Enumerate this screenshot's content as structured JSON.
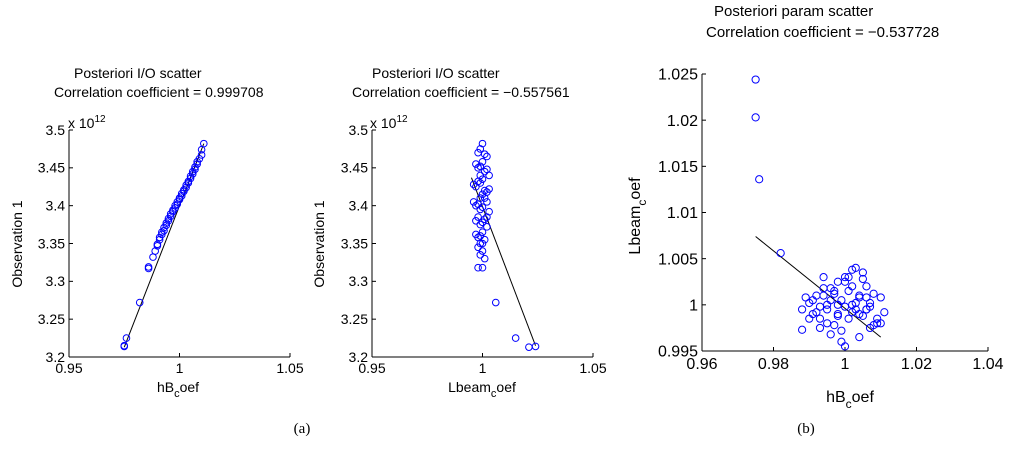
{
  "captions": {
    "a": "(a)",
    "b": "(b)"
  },
  "colors": {
    "marker": "#0000ff",
    "line": "#000000",
    "axis": "#000000"
  },
  "chart_data": [
    {
      "type": "scatter",
      "title": "Posteriori I/O scatter",
      "subtitle": "Correlation coefficient = 0.999708",
      "xlabel_main": "hB",
      "xlabel_sub": "c",
      "xlabel_rest": "oef",
      "ylabel": "Observation 1",
      "exponent_base": "x 10",
      "exponent_power": "12",
      "xlim": [
        0.95,
        1.05
      ],
      "ylim": [
        3.2,
        3.5
      ],
      "xticks": [
        0.95,
        1,
        1.05
      ],
      "xticklabels": [
        "0.95",
        "1",
        "1.05"
      ],
      "yticks": [
        3.2,
        3.25,
        3.3,
        3.35,
        3.4,
        3.45,
        3.5
      ],
      "yticklabels": [
        "3.2",
        "3.25",
        "3.3",
        "3.35",
        "3.4",
        "3.45",
        "3.5"
      ],
      "fit_line": {
        "x": [
          0.975,
          1.011
        ],
        "y": [
          3.213,
          3.482
        ]
      },
      "points": {
        "x": [
          0.975,
          0.975,
          0.976,
          0.982,
          0.986,
          0.986,
          0.988,
          0.989,
          0.99,
          0.99,
          0.991,
          0.991,
          0.992,
          0.992,
          0.993,
          0.993,
          0.994,
          0.994,
          0.995,
          0.995,
          0.996,
          0.996,
          0.997,
          0.997,
          0.998,
          0.998,
          0.999,
          0.999,
          1.0,
          1.0,
          1.001,
          1.001,
          1.002,
          1.002,
          1.003,
          1.003,
          1.004,
          1.004,
          1.005,
          1.005,
          1.006,
          1.006,
          1.007,
          1.007,
          1.008,
          1.008,
          1.009,
          1.01,
          1.01,
          1.011
        ],
        "y": [
          3.214,
          3.215,
          3.225,
          3.272,
          3.317,
          3.319,
          3.332,
          3.34,
          3.347,
          3.349,
          3.355,
          3.358,
          3.362,
          3.365,
          3.367,
          3.371,
          3.374,
          3.377,
          3.38,
          3.383,
          3.386,
          3.389,
          3.392,
          3.394,
          3.397,
          3.4,
          3.402,
          3.405,
          3.408,
          3.41,
          3.413,
          3.416,
          3.419,
          3.421,
          3.424,
          3.427,
          3.43,
          3.432,
          3.436,
          3.439,
          3.442,
          3.445,
          3.448,
          3.451,
          3.455,
          3.458,
          3.462,
          3.467,
          3.474,
          3.482
        ]
      }
    },
    {
      "type": "scatter",
      "title": "Posteriori I/O scatter",
      "subtitle": "Correlation coefficient = −0.557561",
      "xlabel_main": "Lbeam",
      "xlabel_sub": "c",
      "xlabel_rest": "oef",
      "ylabel": "Observation 1",
      "exponent_base": "x 10",
      "exponent_power": "12",
      "xlim": [
        0.95,
        1.05
      ],
      "ylim": [
        3.2,
        3.5
      ],
      "xticks": [
        0.95,
        1,
        1.05
      ],
      "xticklabels": [
        "0.95",
        "1",
        "1.05"
      ],
      "yticks": [
        3.2,
        3.25,
        3.3,
        3.35,
        3.4,
        3.45,
        3.5
      ],
      "yticklabels": [
        "3.2",
        "3.25",
        "3.3",
        "3.35",
        "3.4",
        "3.45",
        "3.5"
      ],
      "fit_line": {
        "x": [
          0.995,
          1.024
        ],
        "y": [
          3.437,
          3.215
        ]
      },
      "points": {
        "x": [
          0.998,
          0.999,
          1.0,
          1.001,
          1.002,
          0.997,
          0.998,
          0.999,
          1.0,
          1.001,
          1.002,
          1.003,
          0.996,
          0.997,
          0.998,
          0.999,
          1.0,
          1.001,
          1.002,
          1.003,
          0.996,
          0.997,
          0.998,
          0.999,
          1.0,
          1.001,
          1.002,
          1.003,
          0.997,
          0.998,
          0.999,
          1.0,
          1.001,
          1.002,
          0.997,
          0.998,
          0.999,
          1.0,
          1.001,
          0.998,
          0.999,
          1.0,
          1.001,
          0.998,
          1.0,
          0.999,
          1.002,
          0.999,
          1.0,
          1.006,
          1.015,
          1.021,
          1.024,
          0.999,
          1.0
        ],
        "y": [
          3.47,
          3.475,
          3.482,
          3.468,
          3.465,
          3.455,
          3.45,
          3.452,
          3.458,
          3.445,
          3.448,
          3.44,
          3.428,
          3.425,
          3.432,
          3.43,
          3.435,
          3.42,
          3.418,
          3.422,
          3.405,
          3.4,
          3.402,
          3.395,
          3.398,
          3.41,
          3.405,
          3.392,
          3.38,
          3.385,
          3.375,
          3.378,
          3.382,
          3.372,
          3.362,
          3.358,
          3.35,
          3.365,
          3.355,
          3.345,
          3.335,
          3.34,
          3.33,
          3.318,
          3.318,
          3.41,
          3.385,
          3.44,
          3.415,
          3.272,
          3.225,
          3.213,
          3.214,
          3.36,
          3.35
        ]
      }
    },
    {
      "type": "scatter",
      "title": "Posteriori param scatter",
      "subtitle": "Correlation coefficient = −0.537728",
      "xlabel_main": "hB",
      "xlabel_sub": "c",
      "xlabel_rest": "oef",
      "ylabel_main": "Lbeam",
      "ylabel_sub": "c",
      "ylabel_rest": "oef",
      "xlim": [
        0.96,
        1.04
      ],
      "ylim": [
        0.995,
        1.025
      ],
      "xticks": [
        0.96,
        0.98,
        1,
        1.02,
        1.04
      ],
      "xticklabels": [
        "0.96",
        "0.98",
        "1",
        "1.02",
        "1.04"
      ],
      "yticks": [
        0.995,
        1,
        1.005,
        1.01,
        1.015,
        1.02,
        1.025
      ],
      "yticklabels": [
        "0.995",
        "1",
        "1.005",
        "1.01",
        "1.015",
        "1.02",
        "1.025"
      ],
      "fit_line": {
        "x": [
          0.975,
          1.01
        ],
        "y": [
          1.0074,
          0.9965
        ]
      },
      "points": {
        "x": [
          0.975,
          0.975,
          0.976,
          0.982,
          0.988,
          0.988,
          0.989,
          0.99,
          0.991,
          0.992,
          0.993,
          0.994,
          0.995,
          0.996,
          0.997,
          0.998,
          0.999,
          1.0,
          1.001,
          1.002,
          1.003,
          1.004,
          1.005,
          1.006,
          1.007,
          1.008,
          1.009,
          1.01,
          1.011,
          0.991,
          0.993,
          0.995,
          0.997,
          0.999,
          1.001,
          1.003,
          1.005,
          1.007,
          1.009,
          0.992,
          0.994,
          0.996,
          0.998,
          1.0,
          1.002,
          1.004,
          1.006,
          1.008,
          0.99,
          0.994,
          0.998,
          1.002,
          1.006,
          1.01,
          0.996,
          1.0,
          1.004,
          0.993,
          0.997,
          1.001,
          1.005,
          0.999,
          1.003,
          0.995,
          1.007,
          0.998,
          1.002,
          1.004,
          1.006,
          1.0
        ],
        "y": [
          1.0244,
          1.0203,
          1.0136,
          1.0056,
          0.9995,
          0.9973,
          1.0008,
          1.0002,
          0.999,
          1.001,
          0.9985,
          1.003,
          0.9995,
          1.0018,
          0.9978,
          1.0025,
          1.0005,
          0.9998,
          1.0015,
          0.9992,
          1.004,
          1.0008,
          0.9988,
          1.002,
          0.9975,
          1.0012,
          0.9985,
          1.0008,
          0.9992,
          1.0005,
          0.9975,
          1.0,
          1.0012,
          0.996,
          1.003,
          0.9995,
          1.0035,
          1.0002,
          0.998,
          0.9992,
          1.0018,
          0.9968,
          1.0,
          0.9955,
          1.002,
          0.999,
          1.0008,
          0.9978,
          0.9985,
          1.001,
          0.9988,
          1.0038,
          0.9995,
          0.998,
          1.0005,
          1.0025,
          0.9965,
          0.9998,
          1.0015,
          0.9985,
          1.0028,
          0.9972,
          1.0002,
          0.998,
          0.9998,
          0.999,
          1.0,
          1.001,
          0.9995,
          1.003
        ]
      }
    }
  ]
}
